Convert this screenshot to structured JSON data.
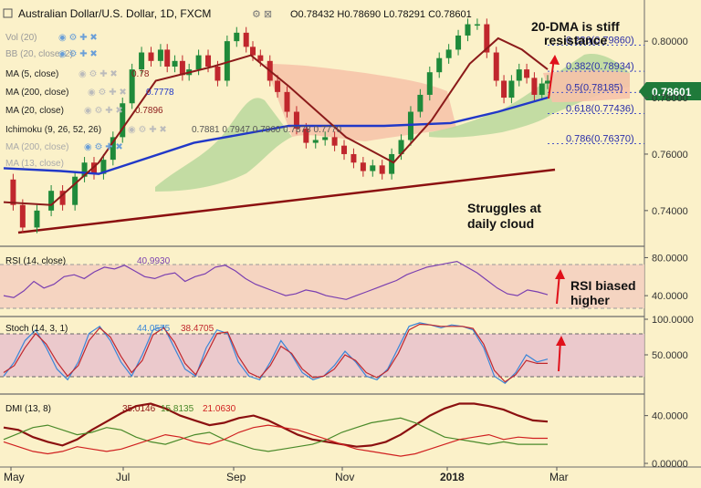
{
  "header": {
    "title": "Australian Dollar/U.S. Dollar, 1D, FXCM",
    "ohlc": "O0.78432 H0.78690 L0.78291 C0.78601"
  },
  "indicators": [
    {
      "label": "Vol (20)",
      "value": ""
    },
    {
      "label": "BB (20, close, 2)",
      "value": ""
    },
    {
      "label": "MA (5, close)",
      "value": "0.78"
    },
    {
      "label": "MA (200, close)",
      "value": "0.7778"
    },
    {
      "label": "MA (20, close)",
      "value": "0.7896"
    },
    {
      "label": "Ichimoku (9, 26, 52, 26)",
      "value": "0.7881  0.7947  0.7860  0.7878  0.7770"
    },
    {
      "label": "MA (200, close)",
      "value": ""
    },
    {
      "label": "MA (13, close)",
      "value": ""
    }
  ],
  "fib_levels": [
    {
      "label": "0.236(0.79860)",
      "value": 0.7986
    },
    {
      "label": "0.382(0.78934)",
      "value": 0.78934
    },
    {
      "label": "0.5(0.78185)",
      "value": 0.78185
    },
    {
      "label": "0.618(0.77436)",
      "value": 0.77436
    },
    {
      "label": "0.786(0.76370)",
      "value": 0.7637
    }
  ],
  "price_badge": "0.78601",
  "annotations": {
    "dma": [
      "20-DMA is stiff",
      "resistance"
    ],
    "cloud": [
      "Struggles at",
      "daily cloud"
    ],
    "rsi": [
      "RSI biased",
      "higher"
    ]
  },
  "panels": {
    "rsi_label": "RSI (14, close)",
    "rsi_value": "40.9930",
    "stoch_label": "Stoch (14, 3, 1)",
    "stoch_k": "44.0575",
    "stoch_d": "38.4705",
    "dmi_label": "DMI (13, 8)",
    "dmi_adx": "35.0146",
    "dmi_plus": "15.8135",
    "dmi_minus": "21.0630"
  },
  "colors": {
    "background": "#fbf1c9",
    "candle_up": "#1f8a3a",
    "candle_down": "#c0272d",
    "ma200": "#2138c8",
    "ma20": "#8b1a1a",
    "trendline": "#8b1010",
    "cloud_bull": "#b8d89c",
    "cloud_bear": "#f6c2a8",
    "rsi_line": "#7a3fb0",
    "stoch_k": "#3a86d8",
    "stoch_d": "#c0272d",
    "dmi_adx": "#8b1010",
    "dmi_plus": "#4a8a2a",
    "dmi_minus": "#d02020",
    "arrow": "#e0101a"
  },
  "chart_data": [
    {
      "type": "line",
      "title": "Australian Dollar/U.S. Dollar, 1D, FXCM",
      "x": [
        "May",
        "Jul",
        "Sep",
        "Nov",
        "2018",
        "Mar"
      ],
      "ylim": [
        0.728,
        0.812
      ],
      "yticks": [
        "0.80000",
        "0.78000",
        "0.76000",
        "0.74000"
      ],
      "series": [
        {
          "name": "Close",
          "points": [
            [
              0,
              0.751
            ],
            [
              10,
              0.742
            ],
            [
              20,
              0.734
            ],
            [
              35,
              0.74
            ],
            [
              50,
              0.747
            ],
            [
              62,
              0.742
            ],
            [
              75,
              0.752
            ],
            [
              85,
              0.757
            ],
            [
              95,
              0.753
            ],
            [
              105,
              0.758
            ],
            [
              115,
              0.766
            ],
            [
              125,
              0.778
            ],
            [
              135,
              0.79
            ],
            [
              145,
              0.796
            ],
            [
              155,
              0.793
            ],
            [
              165,
              0.797
            ],
            [
              172,
              0.791
            ],
            [
              180,
              0.793
            ],
            [
              188,
              0.788
            ],
            [
              195,
              0.79
            ],
            [
              205,
              0.795
            ],
            [
              215,
              0.791
            ],
            [
              225,
              0.786
            ],
            [
              235,
              0.8
            ],
            [
              245,
              0.803
            ],
            [
              255,
              0.798
            ],
            [
              262,
              0.795
            ],
            [
              270,
              0.793
            ],
            [
              280,
              0.786
            ],
            [
              288,
              0.782
            ],
            [
              298,
              0.775
            ],
            [
              308,
              0.769
            ],
            [
              318,
              0.764
            ],
            [
              328,
              0.765
            ],
            [
              338,
              0.766
            ],
            [
              348,
              0.763
            ],
            [
              358,
              0.76
            ],
            [
              368,
              0.757
            ],
            [
              378,
              0.754
            ],
            [
              388,
              0.756
            ],
            [
              398,
              0.753
            ],
            [
              408,
              0.76
            ],
            [
              418,
              0.765
            ],
            [
              428,
              0.775
            ],
            [
              438,
              0.781
            ],
            [
              448,
              0.789
            ],
            [
              458,
              0.794
            ],
            [
              468,
              0.797
            ],
            [
              478,
              0.802
            ],
            [
              488,
              0.806
            ],
            [
              498,
              0.806
            ],
            [
              508,
              0.796
            ],
            [
              518,
              0.786
            ],
            [
              526,
              0.78
            ],
            [
              534,
              0.786
            ],
            [
              542,
              0.79
            ],
            [
              550,
              0.787
            ],
            [
              558,
              0.781
            ],
            [
              566,
              0.785
            ],
            [
              572,
              0.786
            ]
          ]
        },
        {
          "name": "MA (200, close)",
          "points": [
            [
              0,
              0.755
            ],
            [
              60,
              0.754
            ],
            [
              100,
              0.753
            ],
            [
              200,
              0.764
            ],
            [
              300,
              0.77
            ],
            [
              400,
              0.77
            ],
            [
              470,
              0.771
            ],
            [
              520,
              0.775
            ],
            [
              572,
              0.78
            ]
          ]
        },
        {
          "name": "MA (20, close)",
          "points": [
            [
              0,
              0.743
            ],
            [
              50,
              0.742
            ],
            [
              100,
              0.757
            ],
            [
              160,
              0.786
            ],
            [
              220,
              0.791
            ],
            [
              260,
              0.795
            ],
            [
              300,
              0.784
            ],
            [
              360,
              0.766
            ],
            [
              410,
              0.757
            ],
            [
              450,
              0.772
            ],
            [
              490,
              0.792
            ],
            [
              520,
              0.801
            ],
            [
              545,
              0.797
            ],
            [
              572,
              0.79
            ]
          ]
        }
      ],
      "levels": [
        0.7986,
        0.78934,
        0.78185,
        0.77436,
        0.7637
      ]
    },
    {
      "type": "line",
      "title": "RSI (14, close)",
      "ylim": [
        20,
        90
      ],
      "yticks": [
        "80.0000",
        "40.0000"
      ],
      "band": [
        30,
        70
      ],
      "series": [
        {
          "name": "RSI (14, close)",
          "values": [
            40,
            38,
            45,
            55,
            48,
            52,
            60,
            62,
            58,
            65,
            70,
            68,
            72,
            66,
            60,
            58,
            62,
            64,
            55,
            60,
            63,
            70,
            72,
            66,
            58,
            52,
            48,
            44,
            40,
            42,
            46,
            44,
            40,
            38,
            36,
            40,
            44,
            48,
            52,
            56,
            62,
            66,
            70,
            72,
            74,
            76,
            70,
            64,
            56,
            48,
            42,
            40,
            46,
            44,
            41
          ]
        }
      ]
    },
    {
      "type": "line",
      "title": "Stoch (14, 3, 1)",
      "ylim": [
        0,
        100
      ],
      "yticks": [
        "100.0000",
        "50.0000"
      ],
      "band": [
        20,
        80
      ],
      "series": [
        {
          "name": "%K",
          "values": [
            20,
            40,
            70,
            85,
            60,
            30,
            15,
            40,
            80,
            90,
            70,
            40,
            20,
            50,
            85,
            90,
            60,
            30,
            20,
            60,
            85,
            80,
            40,
            20,
            15,
            40,
            70,
            50,
            25,
            15,
            20,
            35,
            55,
            40,
            20,
            15,
            30,
            60,
            90,
            95,
            92,
            88,
            92,
            90,
            85,
            60,
            20,
            10,
            25,
            50,
            40,
            44
          ]
        },
        {
          "name": "%D",
          "values": [
            25,
            35,
            60,
            80,
            65,
            40,
            20,
            35,
            70,
            88,
            75,
            48,
            25,
            42,
            78,
            88,
            68,
            38,
            22,
            50,
            80,
            82,
            48,
            25,
            18,
            35,
            62,
            52,
            30,
            18,
            20,
            30,
            50,
            42,
            25,
            18,
            28,
            52,
            85,
            93,
            92,
            90,
            90,
            90,
            87,
            65,
            28,
            12,
            22,
            42,
            38,
            38
          ]
        }
      ]
    },
    {
      "type": "line",
      "title": "DMI (13, 8)",
      "ylim": [
        0,
        55
      ],
      "yticks": [
        "40.0000",
        "0.00000"
      ],
      "series": [
        {
          "name": "ADX",
          "values": [
            30,
            28,
            22,
            18,
            15,
            20,
            28,
            35,
            42,
            48,
            50,
            46,
            40,
            36,
            32,
            34,
            38,
            40,
            36,
            30,
            24,
            20,
            18,
            16,
            14,
            15,
            18,
            24,
            32,
            40,
            46,
            50,
            50,
            48,
            45,
            40,
            36,
            35
          ]
        },
        {
          "name": "+DI",
          "values": [
            20,
            25,
            30,
            32,
            28,
            24,
            26,
            30,
            28,
            22,
            18,
            16,
            20,
            24,
            26,
            20,
            16,
            12,
            10,
            12,
            14,
            16,
            20,
            26,
            30,
            34,
            36,
            38,
            34,
            28,
            22,
            20,
            18,
            16,
            18,
            16,
            16,
            16
          ]
        },
        {
          "name": "-DI",
          "values": [
            18,
            14,
            10,
            8,
            10,
            14,
            12,
            10,
            12,
            16,
            20,
            24,
            22,
            18,
            16,
            20,
            26,
            30,
            32,
            30,
            28,
            24,
            20,
            16,
            12,
            10,
            8,
            6,
            8,
            12,
            16,
            20,
            22,
            24,
            20,
            22,
            21,
            21
          ]
        }
      ]
    }
  ]
}
